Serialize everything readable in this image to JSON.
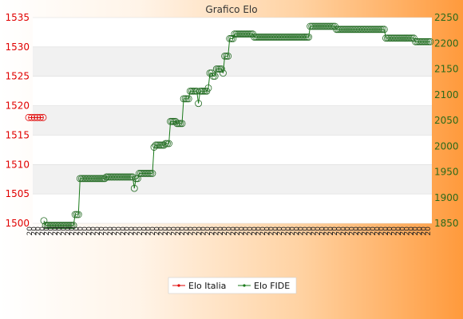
{
  "chart_data": {
    "type": "line",
    "title": "Grafico Elo",
    "grid": true,
    "legend_position": "bottom-center",
    "y_left": {
      "ylim": [
        1500,
        1535
      ],
      "ticks": [
        1500,
        1505,
        1510,
        1515,
        1520,
        1525,
        1530,
        1535
      ],
      "color": "#e00000"
    },
    "y_right": {
      "ylim": [
        1850,
        2250
      ],
      "ticks": [
        1850,
        1900,
        1950,
        2000,
        2050,
        2100,
        2150,
        2200,
        2250
      ],
      "color": "#2a6a1a"
    },
    "x_tick_label": "20",
    "series": [
      {
        "name": "Elo Italia",
        "axis": "left",
        "color": "#e00000",
        "values": [
          1518,
          1518,
          1518,
          1518,
          1518,
          1518
        ]
      },
      {
        "name": "Elo FIDE",
        "axis": "right",
        "color": "#1a7a1a",
        "values": [
          1855,
          1846,
          1846,
          1846,
          1846,
          1846,
          1846,
          1846,
          1846,
          1846,
          1846,
          1846,
          1846,
          1846,
          1846,
          1846,
          1846,
          1846,
          1846,
          1867,
          1867,
          1867,
          1937,
          1937,
          1937,
          1937,
          1937,
          1937,
          1937,
          1937,
          1937,
          1937,
          1937,
          1937,
          1937,
          1937,
          1937,
          1937,
          1940,
          1940,
          1940,
          1940,
          1940,
          1940,
          1940,
          1940,
          1940,
          1940,
          1940,
          1940,
          1940,
          1940,
          1940,
          1940,
          1940,
          1918,
          1937,
          1937,
          1947,
          1947,
          1947,
          1947,
          1947,
          1947,
          1947,
          1947,
          1947,
          1998,
          2002,
          2002,
          2002,
          2002,
          2002,
          2002,
          2005,
          2005,
          2005,
          2048,
          2048,
          2048,
          2048,
          2044,
          2044,
          2044,
          2044,
          2092,
          2092,
          2092,
          2092,
          2107,
          2107,
          2107,
          2107,
          2107,
          2083,
          2107,
          2107,
          2107,
          2107,
          2107,
          2113,
          2142,
          2142,
          2136,
          2136,
          2150,
          2150,
          2150,
          2150,
          2142,
          2175,
          2175,
          2175,
          2209,
          2209,
          2209,
          2218,
          2218,
          2218,
          2218,
          2218,
          2218,
          2218,
          2218,
          2218,
          2218,
          2218,
          2218,
          2212,
          2212,
          2212,
          2212,
          2212,
          2212,
          2212,
          2212,
          2212,
          2212,
          2212,
          2212,
          2212,
          2212,
          2212,
          2212,
          2212,
          2212,
          2212,
          2212,
          2212,
          2212,
          2212,
          2212,
          2212,
          2212,
          2212,
          2212,
          2212,
          2212,
          2212,
          2212,
          2212,
          2212,
          2233,
          2233,
          2233,
          2233,
          2233,
          2233,
          2233,
          2233,
          2233,
          2233,
          2233,
          2233,
          2233,
          2233,
          2233,
          2233,
          2227,
          2227,
          2227,
          2227,
          2227,
          2227,
          2227,
          2227,
          2227,
          2227,
          2227,
          2227,
          2227,
          2227,
          2227,
          2227,
          2227,
          2227,
          2227,
          2227,
          2227,
          2227,
          2227,
          2227,
          2227,
          2227,
          2227,
          2227,
          2227,
          2227,
          2210,
          2210,
          2210,
          2210,
          2210,
          2210,
          2210,
          2210,
          2210,
          2210,
          2210,
          2210,
          2210,
          2210,
          2210,
          2210,
          2210,
          2210,
          2203,
          2203,
          2203,
          2203,
          2203,
          2203,
          2203,
          2203,
          2203,
          2203
        ]
      }
    ]
  }
}
